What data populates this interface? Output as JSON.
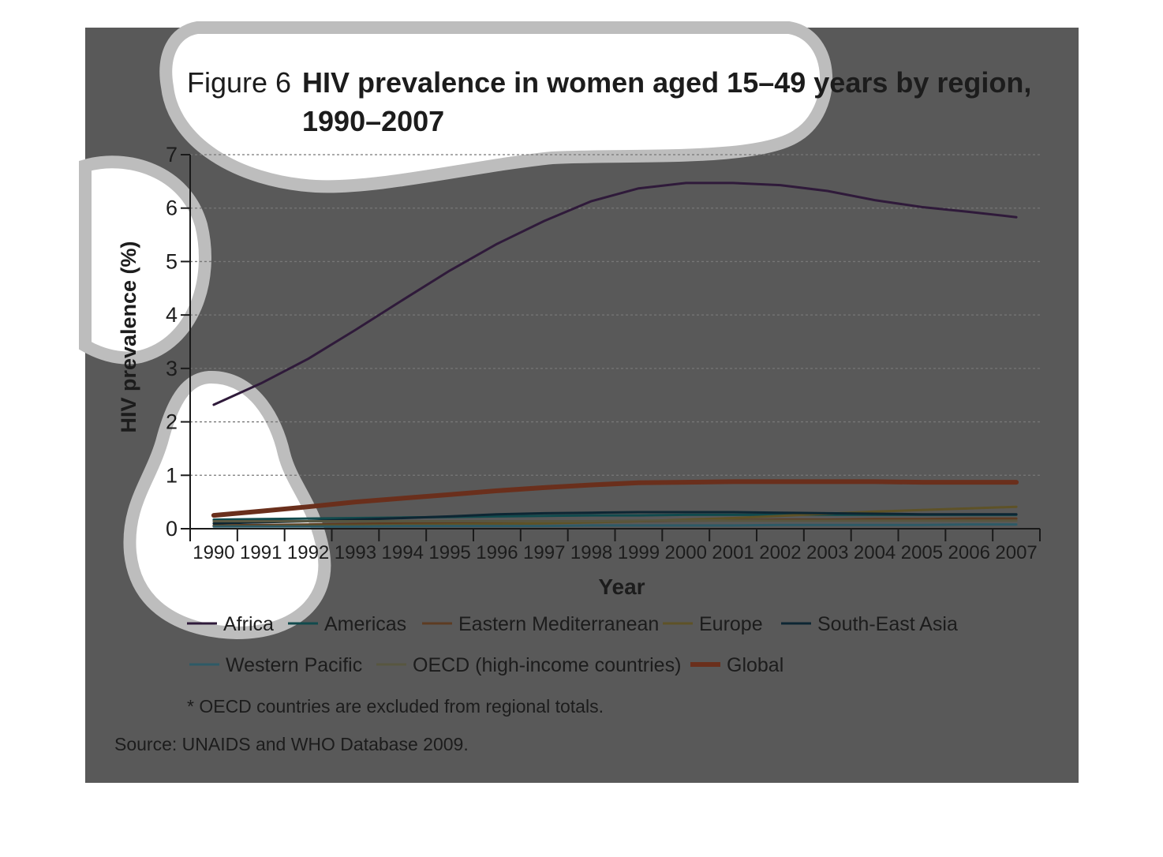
{
  "figure_label": "Figure 6",
  "title_line1": "HIV prevalence in women aged 15–49 years by region,",
  "title_line2": "1990–2007",
  "footnote": "* OECD countries are excluded from regional totals.",
  "source": "Source: UNAIDS and WHO Database 2009.",
  "colors": {
    "background": "#595959",
    "highlight": "#ffffff",
    "highlight_ring": "#bdbdbd",
    "axis": "#1a1a1a",
    "grid": "#777777",
    "text": "#1c1c1c"
  },
  "chart_data": {
    "type": "line",
    "xlabel": "Year",
    "ylabel": "HIV prevalence (%)",
    "ylim": [
      0,
      7
    ],
    "yticks": [
      0,
      1,
      2,
      3,
      4,
      5,
      6,
      7
    ],
    "grid": "horizontal dotted",
    "legend_position": "bottom",
    "x": [
      "1990",
      "1991",
      "1992",
      "1993",
      "1994",
      "1995",
      "1996",
      "1997",
      "1998",
      "1999",
      "2000",
      "2001",
      "2002",
      "2003",
      "2004",
      "2005",
      "2006",
      "2007"
    ],
    "series": [
      {
        "name": "Africa",
        "color": "#2f1a3a",
        "width": 3,
        "values": [
          2.32,
          2.72,
          3.18,
          3.72,
          4.28,
          4.83,
          5.33,
          5.76,
          6.13,
          6.37,
          6.47,
          6.47,
          6.43,
          6.32,
          6.15,
          6.02,
          5.93,
          5.83
        ]
      },
      {
        "name": "Americas",
        "color": "#114a4d",
        "width": 3,
        "values": [
          0.17,
          0.18,
          0.19,
          0.2,
          0.21,
          0.22,
          0.23,
          0.24,
          0.25,
          0.25,
          0.26,
          0.26,
          0.26,
          0.26,
          0.26,
          0.26,
          0.26,
          0.26
        ]
      },
      {
        "name": "Eastern Mediterranean",
        "color": "#5d3b22",
        "width": 3,
        "values": [
          0.06,
          0.07,
          0.08,
          0.09,
          0.1,
          0.11,
          0.12,
          0.12,
          0.13,
          0.14,
          0.15,
          0.16,
          0.17,
          0.17,
          0.18,
          0.18,
          0.19,
          0.19
        ]
      },
      {
        "name": "Europe",
        "color": "#5e5227",
        "width": 3,
        "values": [
          0.05,
          0.05,
          0.06,
          0.06,
          0.07,
          0.08,
          0.09,
          0.1,
          0.12,
          0.14,
          0.17,
          0.2,
          0.24,
          0.28,
          0.32,
          0.35,
          0.38,
          0.41
        ]
      },
      {
        "name": "South-East Asia",
        "color": "#0d2633",
        "width": 3,
        "values": [
          0.1,
          0.12,
          0.14,
          0.17,
          0.2,
          0.23,
          0.27,
          0.29,
          0.3,
          0.31,
          0.31,
          0.31,
          0.3,
          0.29,
          0.28,
          0.27,
          0.27,
          0.27
        ]
      },
      {
        "name": "Western Pacific",
        "color": "#2e5a66",
        "width": 3,
        "values": [
          0.04,
          0.04,
          0.04,
          0.04,
          0.05,
          0.05,
          0.05,
          0.05,
          0.06,
          0.06,
          0.06,
          0.06,
          0.07,
          0.07,
          0.07,
          0.07,
          0.08,
          0.08
        ]
      },
      {
        "name": "OECD (high-income countries)",
        "color": "#585640",
        "width": 3,
        "values": [
          0.14,
          0.14,
          0.14,
          0.14,
          0.14,
          0.14,
          0.14,
          0.14,
          0.14,
          0.15,
          0.15,
          0.15,
          0.15,
          0.15,
          0.15,
          0.15,
          0.15,
          0.15
        ]
      },
      {
        "name": "Global",
        "color": "#6a2f1c",
        "width": 6,
        "values": [
          0.25,
          0.33,
          0.41,
          0.5,
          0.57,
          0.64,
          0.71,
          0.77,
          0.82,
          0.86,
          0.87,
          0.88,
          0.88,
          0.88,
          0.88,
          0.87,
          0.87,
          0.87
        ]
      }
    ],
    "legend_rows": [
      [
        "Africa",
        "Americas",
        "Eastern Mediterranean",
        "Europe",
        "South-East Asia"
      ],
      [
        "Western Pacific",
        "OECD (high-income countries)",
        "Global"
      ]
    ]
  }
}
